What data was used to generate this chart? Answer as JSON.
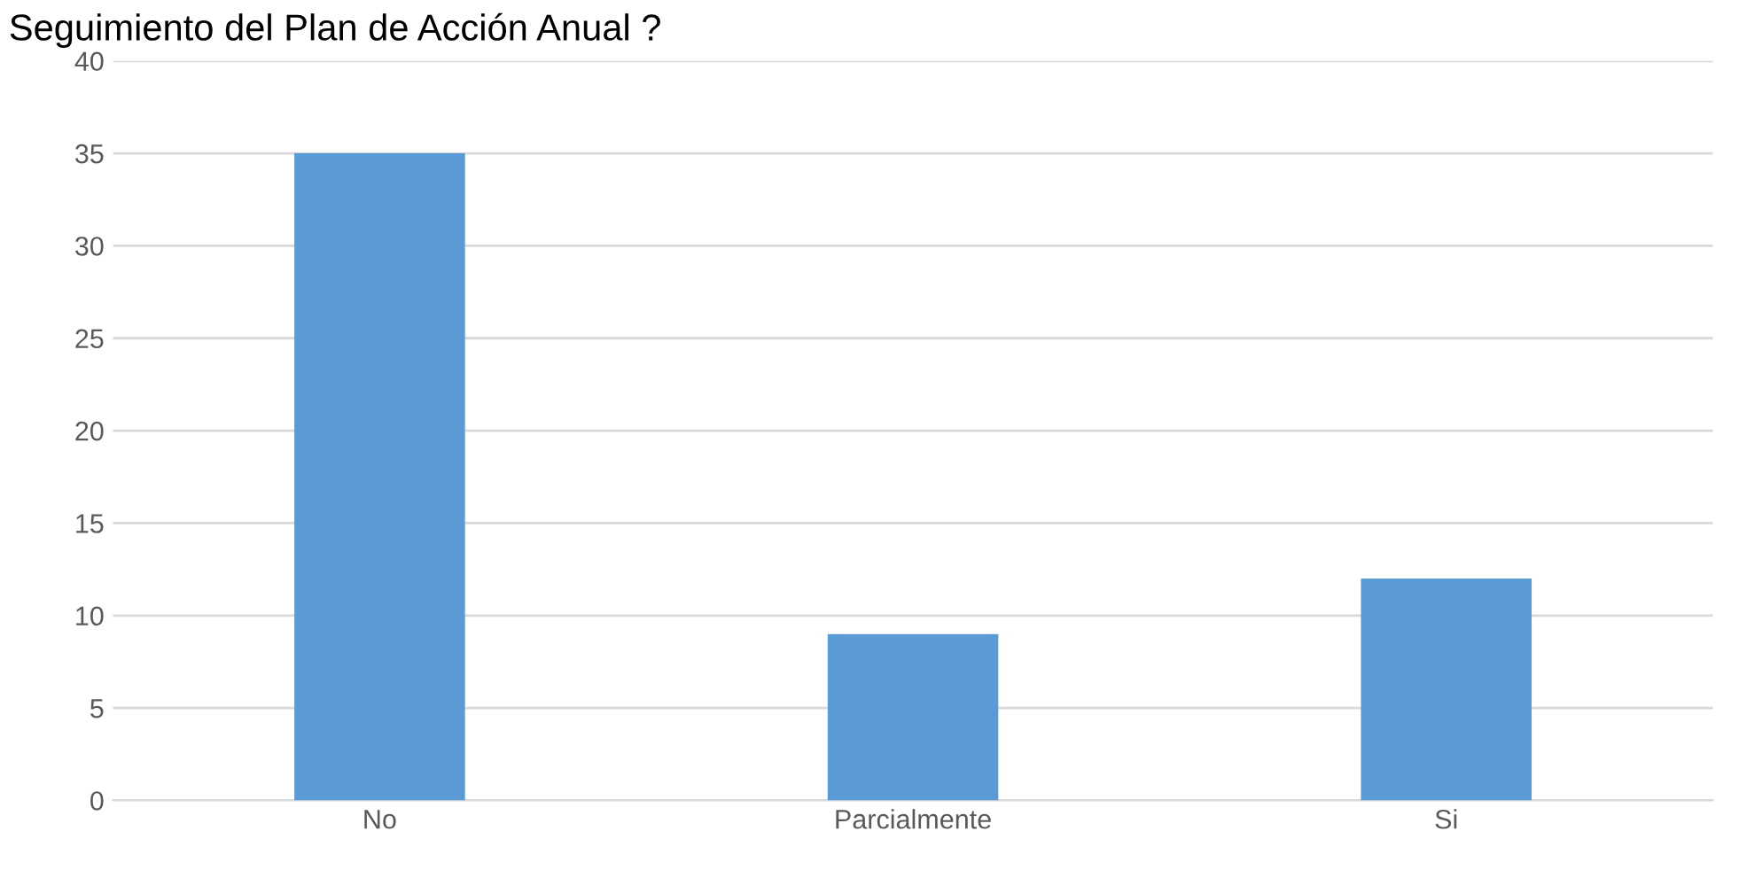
{
  "chart_data": {
    "type": "bar",
    "title": "Seguimiento del Plan de Acción Anual ?",
    "categories": [
      "No",
      "Parcialmente",
      "Si"
    ],
    "values": [
      35,
      9,
      12
    ],
    "color": "#5b9bd5",
    "ylim": [
      0,
      40
    ],
    "yticks": [
      0,
      5,
      10,
      15,
      20,
      25,
      30,
      35,
      40
    ],
    "grid": "y"
  }
}
